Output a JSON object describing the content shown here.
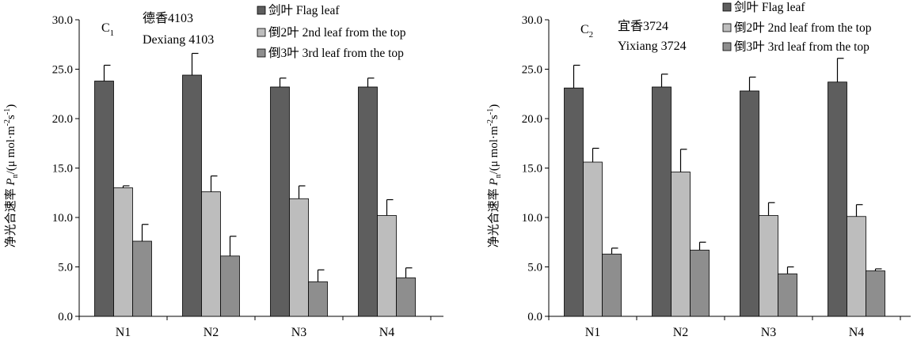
{
  "chart_data": [
    {
      "type": "bar",
      "panel_label": "C",
      "panel_sub": "1",
      "annotation_cn": "德香4103",
      "annotation_en": "Dexiang 4103",
      "ylabel_cn": "净光合速率 ",
      "ylabel_var": "P",
      "ylabel_var_sub": "n",
      "ylabel_unit": "/(μ mol·m",
      "ylabel_unit_sup1": "-2",
      "ylabel_unit_mid": "s",
      "ylabel_unit_sup2": "-1",
      "ylabel_close": ")",
      "ylim": [
        0,
        30
      ],
      "yticks": [
        "0.0",
        "5.0",
        "10.0",
        "15.0",
        "20.0",
        "25.0",
        "30.0"
      ],
      "categories": [
        "N1",
        "N2",
        "N3",
        "N4"
      ],
      "series": [
        {
          "name": "剑叶 Flag leaf",
          "color": "#5e5e5e",
          "values": [
            23.8,
            24.4,
            23.2,
            23.2
          ],
          "errors": [
            1.6,
            2.2,
            0.9,
            0.9
          ]
        },
        {
          "name": "倒2叶 2nd leaf from the top",
          "color": "#bdbdbd",
          "values": [
            13.0,
            12.6,
            11.9,
            10.2
          ],
          "errors": [
            0.2,
            1.6,
            1.3,
            1.6
          ]
        },
        {
          "name": "倒3叶 3rd leaf from the top",
          "color": "#8e8e8e",
          "values": [
            7.6,
            6.1,
            3.5,
            3.9
          ],
          "errors": [
            1.7,
            2.0,
            1.2,
            1.0
          ]
        }
      ]
    },
    {
      "type": "bar",
      "panel_label": "C",
      "panel_sub": "2",
      "annotation_cn": "宜香3724",
      "annotation_en": "Yixiang 3724",
      "ylabel_cn": "净光合速率 ",
      "ylabel_var": "P",
      "ylabel_var_sub": "n",
      "ylabel_unit": "/(μ mol·m",
      "ylabel_unit_sup1": "-2",
      "ylabel_unit_mid": "s",
      "ylabel_unit_sup2": "-1",
      "ylabel_close": ")",
      "ylim": [
        0,
        30
      ],
      "yticks": [
        "0.0",
        "5.0",
        "10.0",
        "15.0",
        "20.0",
        "25.0",
        "30.0"
      ],
      "categories": [
        "N1",
        "N2",
        "N3",
        "N4"
      ],
      "series": [
        {
          "name": "剑叶 Flag leaf",
          "color": "#5e5e5e",
          "values": [
            23.1,
            23.2,
            22.8,
            23.7
          ],
          "errors": [
            2.3,
            1.3,
            1.4,
            2.4
          ]
        },
        {
          "name": "倒2叶 2nd leaf from the top",
          "color": "#bdbdbd",
          "values": [
            15.6,
            14.6,
            10.2,
            10.1
          ],
          "errors": [
            1.4,
            2.3,
            1.3,
            1.2
          ]
        },
        {
          "name": "倒3叶 3rd leaf from the top",
          "color": "#8e8e8e",
          "values": [
            6.3,
            6.7,
            4.3,
            4.6
          ],
          "errors": [
            0.6,
            0.8,
            0.7,
            0.2
          ]
        }
      ]
    }
  ]
}
